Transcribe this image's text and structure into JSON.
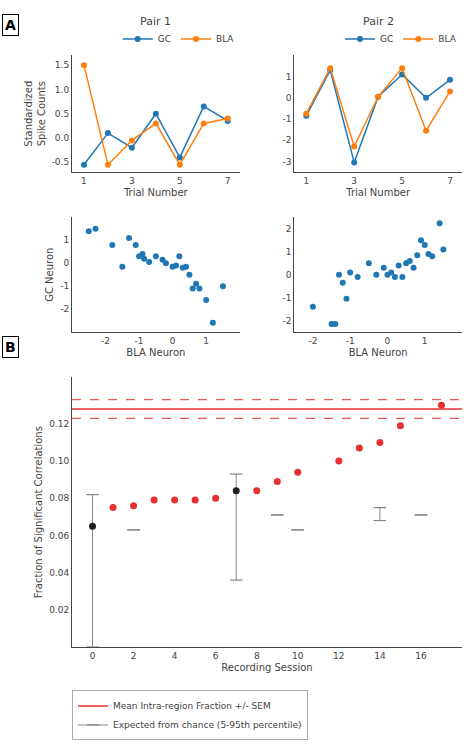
{
  "chart_data": [
    {
      "type": "line",
      "title": "Pair 1",
      "annotations": [
        "A"
      ],
      "x_label": "Trial Number",
      "y_label": "Standardized\nSpike Counts",
      "x": [
        1,
        2,
        3,
        4,
        5,
        6,
        7
      ],
      "series": [
        {
          "name": "GC",
          "color": "#1f77b4",
          "marker": "circle",
          "values": [
            -0.55,
            0.1,
            -0.2,
            0.5,
            -0.4,
            0.65,
            0.35
          ]
        },
        {
          "name": "BLA",
          "color": "#ff7f0e",
          "marker": "circle",
          "values": [
            1.5,
            -0.55,
            -0.05,
            0.3,
            -0.55,
            0.3,
            0.4
          ]
        }
      ],
      "xlim": [
        0.5,
        7.5
      ],
      "xticks": [
        1,
        3,
        5,
        7
      ],
      "ylim": [
        -0.7,
        1.7
      ],
      "yticks": [
        -0.5,
        {
          "value": 0,
          "label": "0.0"
        },
        0.5,
        {
          "value": 1,
          "label": "1.0"
        },
        1.5
      ],
      "legend": "upper right",
      "grid": false
    },
    {
      "type": "line",
      "title": "Pair 2",
      "x_label": "Trial Number",
      "x": [
        1,
        2,
        3,
        4,
        5,
        6,
        7
      ],
      "series": [
        {
          "name": "GC",
          "color": "#1f77b4",
          "marker": "circle",
          "values": [
            -0.85,
            1.3,
            -3.05,
            0.05,
            1.1,
            0.0,
            0.85
          ]
        },
        {
          "name": "BLA",
          "color": "#ff7f0e",
          "marker": "circle",
          "values": [
            -0.75,
            1.4,
            -2.3,
            0.05,
            1.4,
            -1.55,
            0.3
          ]
        }
      ],
      "xlim": [
        0.5,
        7.5
      ],
      "xticks": [
        1,
        3,
        5,
        7
      ],
      "ylim": [
        -3.5,
        2.0
      ],
      "yticks": [
        -3,
        -2,
        -1,
        0,
        1
      ],
      "legend": "upper right",
      "grid": false
    },
    {
      "type": "scatter",
      "x_label": "BLA Neuron",
      "y_label": "GC Neuron",
      "x": [
        -2.5,
        -2.3,
        -1.8,
        -1.5,
        -1.3,
        -1.1,
        -1.0,
        -0.9,
        -0.85,
        -0.7,
        -0.5,
        -0.3,
        -0.2,
        0.0,
        0.1,
        0.2,
        0.3,
        0.4,
        0.5,
        0.6,
        0.7,
        0.8,
        1.0,
        1.2,
        1.5
      ],
      "series": [
        {
          "color": "#1f77b4",
          "marker": "circle",
          "values": [
            1.4,
            1.5,
            0.8,
            -0.15,
            1.1,
            0.8,
            0.3,
            0.4,
            0.2,
            0.05,
            0.3,
            0.15,
            0.0,
            -0.15,
            -0.1,
            0.3,
            -0.2,
            -0.15,
            -0.5,
            -1.1,
            -0.9,
            -1.1,
            -1.6,
            -2.6,
            -1.0
          ]
        }
      ],
      "xlim": [
        -3.0,
        2.0
      ],
      "xticks": [
        -2,
        -1,
        0,
        1
      ],
      "ylim": [
        -3.0,
        2.0
      ],
      "yticks": [
        -2,
        -1,
        0,
        1
      ],
      "grid": false
    },
    {
      "type": "scatter",
      "x_label": "BLA Neuron",
      "x": [
        -2.0,
        -1.5,
        -1.4,
        -1.3,
        -1.2,
        -1.1,
        -1.0,
        -0.8,
        -0.5,
        -0.3,
        -0.1,
        0.0,
        0.1,
        0.2,
        0.3,
        0.4,
        0.5,
        0.6,
        0.7,
        0.8,
        0.9,
        1.0,
        1.1,
        1.2,
        1.4,
        1.5
      ],
      "series": [
        {
          "color": "#1f77b4",
          "marker": "circle",
          "values": [
            -1.4,
            -2.15,
            -2.15,
            0.0,
            -0.35,
            -1.05,
            0.1,
            -0.1,
            0.5,
            0.0,
            0.3,
            0.0,
            0.1,
            -0.1,
            0.4,
            -0.1,
            0.5,
            0.6,
            0.3,
            0.85,
            1.5,
            1.3,
            0.9,
            0.8,
            2.25,
            1.1
          ]
        }
      ],
      "xlim": [
        -2.5,
        2.0
      ],
      "xticks": [
        -2,
        -1,
        0,
        1
      ],
      "ylim": [
        -2.5,
        2.5
      ],
      "yticks": [
        -2,
        -1,
        0,
        1,
        2
      ],
      "grid": false
    },
    {
      "type": "scatter",
      "annotations": [
        "B"
      ],
      "x_label": "Recording Session",
      "y_label": "Fraction of Significant Correlations",
      "x": [
        0,
        1,
        2,
        3,
        4,
        5,
        6,
        7,
        8,
        9,
        10,
        11,
        12,
        13,
        14,
        15,
        16,
        17
      ],
      "series": [
        {
          "type": "range",
          "name": "Expected from chance (5-95th percentile)",
          "color": "#888888",
          "x": [
            0,
            2,
            7,
            9,
            10,
            14,
            16
          ],
          "low": [
            0.0,
            0.063,
            0.036,
            0.071,
            0.063,
            0.068,
            0.071
          ],
          "high": [
            0.082,
            0.063,
            0.093,
            0.071,
            0.063,
            0.075,
            0.071
          ]
        },
        {
          "type": "markers",
          "color": "#e83030",
          "marker": "circle",
          "values": [
            null,
            0.075,
            0.076,
            0.079,
            0.079,
            0.079,
            0.08,
            null,
            0.084,
            0.089,
            0.094,
            null,
            0.1,
            0.107,
            0.11,
            0.119,
            null,
            0.13
          ]
        },
        {
          "type": "markers",
          "color": "#222222",
          "marker": "circle",
          "values": [
            0.065,
            null,
            null,
            null,
            null,
            null,
            null,
            0.084,
            null,
            null,
            null,
            null,
            null,
            null,
            null,
            null,
            null,
            null
          ]
        },
        {
          "type": "hline",
          "name": "Mean Intra-region Fraction +/- SEM",
          "color": "#e83030",
          "line_style": "solid",
          "value": 0.128
        },
        {
          "type": "hline",
          "color": "#e83030",
          "line_style": "dashed",
          "value": 0.133
        },
        {
          "type": "hline",
          "color": "#e83030",
          "line_style": "dashed",
          "value": 0.123
        }
      ],
      "xlim": [
        -1,
        18
      ],
      "xticks": [
        0,
        2,
        4,
        6,
        8,
        10,
        12,
        14,
        16
      ],
      "ylim": [
        0.0,
        0.145
      ],
      "yticks": [
        0.02,
        0.04,
        0.06,
        0.08,
        {
          "value": 0.1,
          "label": "0.10"
        },
        0.12
      ],
      "legend": "lower left",
      "grid": false
    }
  ]
}
